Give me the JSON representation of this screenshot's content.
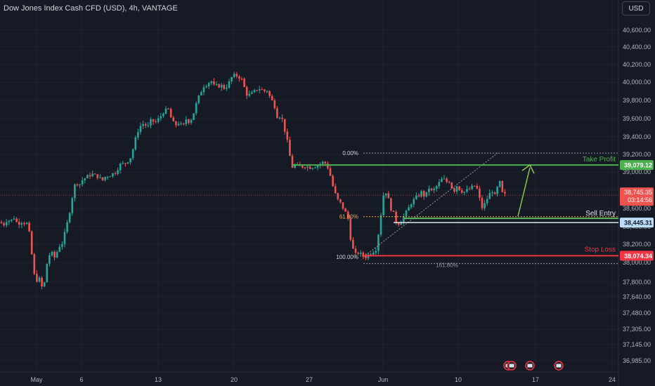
{
  "header": {
    "title": "Dow Jones Index Cash CFD (USD), 4h, VANTAGE",
    "currency_button": "USD"
  },
  "colors": {
    "background": "#161a25",
    "up": "#26a69a",
    "down": "#ef5350",
    "grid": "#1f2330",
    "take_profit": "#4caf50",
    "stop_loss": "#f23645",
    "sell_entry": "#5cb85c",
    "arrow": "#8bc34a",
    "fib": "#9598a1",
    "fib_618": "#f0b03a"
  },
  "chart_data": {
    "type": "candlestick",
    "title": "Dow Jones Index Cash CFD (USD), 4h, VANTAGE",
    "x_ticks": [
      "May",
      "6",
      "13",
      "20",
      "27",
      "Jun",
      "10",
      "17",
      "24"
    ],
    "y_ticks": [
      "40,600.00",
      "40,400.00",
      "40,200.00",
      "40,000.00",
      "39,800.00",
      "39,600.00",
      "39,400.00",
      "39,200.00",
      "39,000.00",
      "38,800.00",
      "38,600.00",
      "38,400.00",
      "38,200.00",
      "38,000.00",
      "37,800.00",
      "37,640.00",
      "37,480.00",
      "37,305.00",
      "37,145.00",
      "36,985.00"
    ],
    "price_labels": {
      "take_profit": "39,079.12",
      "current_price": "38,745.35",
      "countdown": "03:14:56",
      "sell_entry": "38,445.31",
      "stop_loss": "38,074.34"
    },
    "annotations": {
      "take_profit": "Take Profit",
      "sell_entry": "Sell Entry",
      "stop_loss": "Stop Loss",
      "fib_0": "0.00%",
      "fib_618": "61.80%",
      "fib_100": "100.00%",
      "fib_1618": "161.80%"
    },
    "levels": {
      "take_profit": 39079.12,
      "sell_entry": 38445.31,
      "stop_loss": 38074.34,
      "current": 38745.35,
      "fib_0": 39215,
      "fib_618": 38510,
      "fib_100": 38060,
      "fib_1618": 37988
    },
    "trend": [
      [
        0,
        38450
      ],
      [
        5,
        38420
      ],
      [
        10,
        38480
      ],
      [
        15,
        38460
      ],
      [
        20,
        38500
      ],
      [
        25,
        38430
      ],
      [
        30,
        38460
      ],
      [
        35,
        38440
      ],
      [
        40,
        38430
      ],
      [
        45,
        38100
      ],
      [
        50,
        37800
      ],
      [
        55,
        37850
      ],
      [
        60,
        37740
      ],
      [
        63,
        37780
      ],
      [
        67,
        38000
      ],
      [
        72,
        38120
      ],
      [
        78,
        38050
      ],
      [
        84,
        38180
      ],
      [
        88,
        38200
      ],
      [
        92,
        38320
      ],
      [
        96,
        38450
      ],
      [
        100,
        38600
      ],
      [
        104,
        38780
      ],
      [
        108,
        38900
      ],
      [
        113,
        38860
      ],
      [
        118,
        38920
      ],
      [
        125,
        38950
      ],
      [
        130,
        38980
      ],
      [
        135,
        38960
      ],
      [
        140,
        38950
      ],
      [
        145,
        38900
      ],
      [
        150,
        38950
      ],
      [
        158,
        38970
      ],
      [
        165,
        39000
      ],
      [
        170,
        39080
      ],
      [
        178,
        39100
      ],
      [
        185,
        39150
      ],
      [
        190,
        39280
      ],
      [
        195,
        39450
      ],
      [
        200,
        39520
      ],
      [
        205,
        39550
      ],
      [
        210,
        39500
      ],
      [
        215,
        39580
      ],
      [
        222,
        39560
      ],
      [
        228,
        39620
      ],
      [
        233,
        39680
      ],
      [
        240,
        39700
      ],
      [
        245,
        39560
      ],
      [
        250,
        39530
      ],
      [
        255,
        39560
      ],
      [
        260,
        39500
      ],
      [
        265,
        39600
      ],
      [
        270,
        39560
      ],
      [
        275,
        39650
      ],
      [
        280,
        39780
      ],
      [
        285,
        39880
      ],
      [
        290,
        39960
      ],
      [
        295,
        39980
      ],
      [
        300,
        40020
      ],
      [
        305,
        39950
      ],
      [
        310,
        39960
      ],
      [
        315,
        39960
      ],
      [
        320,
        39930
      ],
      [
        325,
        39980
      ],
      [
        330,
        40060
      ],
      [
        335,
        40080
      ],
      [
        340,
        40060
      ],
      [
        345,
        40020
      ],
      [
        350,
        39870
      ],
      [
        355,
        39860
      ],
      [
        360,
        39880
      ],
      [
        365,
        39920
      ],
      [
        370,
        39930
      ],
      [
        375,
        39900
      ],
      [
        380,
        39910
      ],
      [
        385,
        39820
      ],
      [
        390,
        39760
      ],
      [
        395,
        39610
      ],
      [
        400,
        39640
      ],
      [
        405,
        39480
      ],
      [
        410,
        39300
      ],
      [
        415,
        39050
      ],
      [
        420,
        39080
      ],
      [
        425,
        39060
      ],
      [
        430,
        39060
      ],
      [
        435,
        39070
      ],
      [
        440,
        39050
      ],
      [
        445,
        39060
      ],
      [
        450,
        39070
      ],
      [
        455,
        39090
      ],
      [
        460,
        39110
      ],
      [
        465,
        39090
      ],
      [
        470,
        38960
      ],
      [
        475,
        38800
      ],
      [
        480,
        38700
      ],
      [
        485,
        38650
      ],
      [
        490,
        38580
      ],
      [
        495,
        38500
      ],
      [
        500,
        38200
      ],
      [
        505,
        38080
      ],
      [
        510,
        38110
      ],
      [
        515,
        38080
      ],
      [
        520,
        38060
      ],
      [
        525,
        38090
      ],
      [
        530,
        38120
      ],
      [
        535,
        38150
      ],
      [
        540,
        38400
      ],
      [
        545,
        38740
      ],
      [
        550,
        38790
      ],
      [
        555,
        38620
      ],
      [
        560,
        38540
      ],
      [
        565,
        38420
      ],
      [
        570,
        38460
      ],
      [
        575,
        38520
      ],
      [
        580,
        38580
      ],
      [
        585,
        38660
      ],
      [
        590,
        38700
      ],
      [
        595,
        38740
      ],
      [
        600,
        38780
      ],
      [
        605,
        38720
      ],
      [
        610,
        38830
      ],
      [
        615,
        38780
      ],
      [
        620,
        38830
      ],
      [
        625,
        38880
      ],
      [
        630,
        38930
      ],
      [
        635,
        38890
      ],
      [
        640,
        38900
      ],
      [
        645,
        38780
      ],
      [
        650,
        38850
      ],
      [
        655,
        38800
      ],
      [
        660,
        38780
      ],
      [
        665,
        38800
      ],
      [
        670,
        38820
      ],
      [
        675,
        38850
      ],
      [
        680,
        38800
      ],
      [
        685,
        38600
      ],
      [
        690,
        38650
      ],
      [
        695,
        38740
      ],
      [
        700,
        38800
      ],
      [
        705,
        38720
      ],
      [
        710,
        38920
      ],
      [
        715,
        38760
      ],
      [
        720,
        38745
      ]
    ]
  }
}
